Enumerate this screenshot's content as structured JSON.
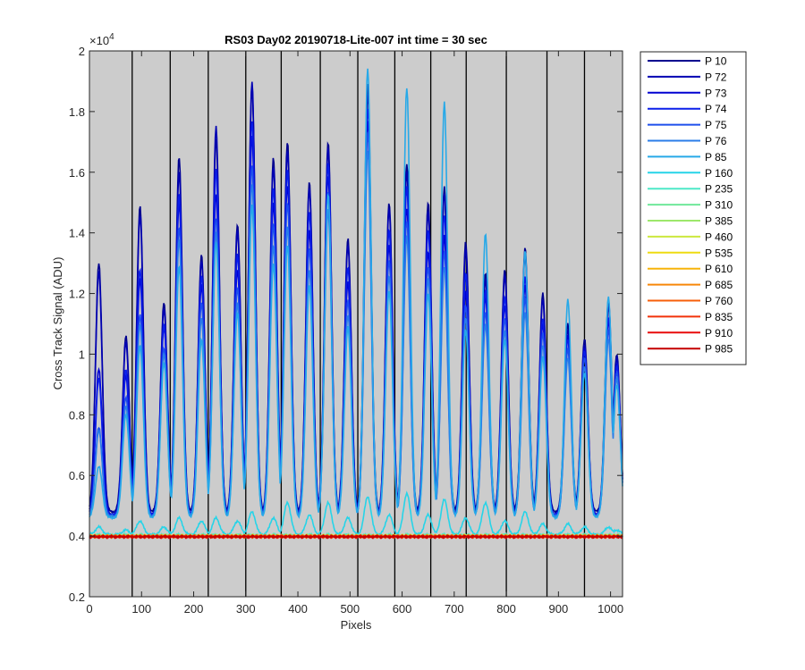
{
  "chart_data": {
    "type": "line",
    "title": "RS03 Day02 20190718-Lite-007 int time = 30 sec",
    "xlabel": "Pixels",
    "ylabel": "Cross Track Signal (ADU)",
    "xlim": [
      0,
      1023
    ],
    "ylim": [
      2000,
      20000
    ],
    "y_exponent_label": "×10",
    "y_exponent_power": "4",
    "xticks": [
      0,
      100,
      200,
      300,
      400,
      500,
      600,
      700,
      800,
      900,
      1000
    ],
    "xtick_labels": [
      "0",
      "100",
      "200",
      "300",
      "400",
      "500",
      "600",
      "700",
      "800",
      "900",
      "1000"
    ],
    "yticks": [
      2000,
      4000,
      6000,
      8000,
      10000,
      12000,
      14000,
      16000,
      18000,
      20000
    ],
    "ytick_labels": [
      "0.2",
      "0.4",
      "0.6",
      "0.8",
      "1",
      "1.2",
      "1.4",
      "1.6",
      "1.8",
      "2"
    ],
    "vertical_separators": [
      82,
      155,
      228,
      300,
      368,
      443,
      515,
      586,
      655,
      723,
      800,
      878,
      950
    ],
    "background_color": "#cccccc",
    "grid": false,
    "legend_position": "outside-right",
    "peak_centers": [
      18,
      70,
      97,
      143,
      172,
      215,
      243,
      284,
      312,
      353,
      380,
      422,
      458,
      496,
      534,
      575,
      609,
      650,
      681,
      722,
      760,
      797,
      836,
      870,
      918,
      950,
      996,
      1012
    ],
    "series": [
      {
        "name": "P 10",
        "color": "#00008f",
        "baseline": 4800,
        "peaks": [
          13000,
          10600,
          14900,
          11700,
          16500,
          13300,
          17100,
          14300,
          18800,
          16500,
          17000,
          15700,
          17000,
          13800,
          18900,
          15000,
          16300,
          15000,
          15500,
          13700,
          12700,
          12800,
          13500,
          12000,
          11000,
          10500,
          11800,
          10000
        ]
      },
      {
        "name": "P 72",
        "color": "#0000b3",
        "baseline": 4700,
        "peaks": [
          12700,
          10400,
          14600,
          11500,
          16000,
          13100,
          17500,
          14100,
          19000,
          16200,
          16700,
          15500,
          16800,
          13600,
          18600,
          14800,
          16000,
          14700,
          15300,
          13500,
          12500,
          12600,
          13300,
          11800,
          10800,
          10300,
          11600,
          9900
        ]
      },
      {
        "name": "P 73",
        "color": "#0000d1",
        "baseline": 4700,
        "peaks": [
          9500,
          9300,
          12500,
          10900,
          15000,
          12300,
          15300,
          12800,
          17200,
          15000,
          15600,
          14100,
          15900,
          12400,
          17700,
          13600,
          14800,
          13400,
          13900,
          12100,
          11900,
          11600,
          12300,
          11000,
          10600,
          10200,
          11100,
          9700
        ]
      },
      {
        "name": "P 74",
        "color": "#0a1eea",
        "baseline": 4700,
        "peaks": [
          9200,
          9500,
          12800,
          11000,
          15300,
          12600,
          16100,
          13300,
          17700,
          15500,
          16100,
          14700,
          16300,
          12900,
          18100,
          14100,
          15500,
          14100,
          14600,
          12700,
          12100,
          11900,
          12600,
          11200,
          10500,
          10100,
          11200,
          9600
        ]
      },
      {
        "name": "P 75",
        "color": "#1f4fec",
        "baseline": 4650,
        "peaks": [
          7600,
          8600,
          11300,
          10200,
          14200,
          11700,
          14500,
          12200,
          16200,
          14300,
          15000,
          13500,
          15400,
          11800,
          17300,
          13100,
          14400,
          12900,
          13400,
          11600,
          11400,
          11200,
          11900,
          10700,
          10200,
          9900,
          10800,
          9400
        ]
      },
      {
        "name": "P 76",
        "color": "#2a7de8",
        "baseline": 4650,
        "peaks": [
          7500,
          8300,
          11000,
          10000,
          13800,
          11200,
          14000,
          11700,
          15600,
          13600,
          14200,
          12800,
          14800,
          11300,
          16700,
          12600,
          13900,
          12500,
          12900,
          11200,
          11000,
          10800,
          11400,
          10300,
          9900,
          9600,
          10500,
          9200
        ]
      },
      {
        "name": "P 85",
        "color": "#27a9e8",
        "baseline": 4600,
        "peaks": [
          6300,
          8000,
          10300,
          9700,
          12900,
          10500,
          13700,
          11400,
          14900,
          13000,
          13600,
          12300,
          15300,
          10900,
          19400,
          12100,
          18800,
          12000,
          18300,
          10800,
          14000,
          10500,
          13400,
          9900,
          11800,
          9400,
          11900,
          9000
        ]
      },
      {
        "name": "P 160",
        "color": "#26d4e8",
        "baseline": 4050,
        "peaks": [
          4300,
          4200,
          4500,
          4300,
          4600,
          4500,
          4600,
          4500,
          4800,
          4600,
          5100,
          4700,
          5100,
          4600,
          5300,
          4700,
          5400,
          4700,
          5200,
          4600,
          5100,
          4500,
          4800,
          4400,
          4400,
          4300,
          4300,
          4200
        ]
      },
      {
        "name": "P 235",
        "color": "#4ee8c8",
        "baseline": 4000,
        "peaks": [
          4050,
          4050,
          4050,
          4050,
          4050,
          4050,
          4050,
          4050,
          4050,
          4050,
          4050,
          4050,
          4050,
          4050,
          4050,
          4050,
          4050,
          4050,
          4050,
          4050,
          4050,
          4050,
          4050,
          4050,
          4050,
          4050,
          4050,
          4050
        ]
      },
      {
        "name": "P 310",
        "color": "#6fe89a",
        "baseline": 4000,
        "peaks": [
          4020,
          4020,
          4020,
          4020,
          4020,
          4020,
          4020,
          4020,
          4020,
          4020,
          4020,
          4020,
          4020,
          4020,
          4020,
          4020,
          4020,
          4020,
          4020,
          4020,
          4020,
          4020,
          4020,
          4020,
          4020,
          4020,
          4020,
          4020
        ]
      },
      {
        "name": "P 385",
        "color": "#9de86b",
        "baseline": 4000,
        "peaks": [
          4010,
          4010,
          4010,
          4010,
          4010,
          4010,
          4010,
          4010,
          4010,
          4010,
          4010,
          4010,
          4010,
          4010,
          4010,
          4010,
          4010,
          4010,
          4010,
          4010,
          4010,
          4010,
          4010,
          4010,
          4010,
          4010,
          4010,
          4010
        ]
      },
      {
        "name": "P 460",
        "color": "#cce83e",
        "baseline": 4000,
        "peaks": [
          4010,
          4010,
          4010,
          4010,
          4010,
          4010,
          4010,
          4010,
          4010,
          4010,
          4010,
          4010,
          4010,
          4010,
          4010,
          4010,
          4010,
          4010,
          4010,
          4010,
          4010,
          4010,
          4010,
          4010,
          4010,
          4010,
          4010,
          4010
        ]
      },
      {
        "name": "P 535",
        "color": "#eedb12",
        "baseline": 4000,
        "peaks": [
          4000,
          4000,
          4000,
          4000,
          4000,
          4000,
          4000,
          4000,
          4000,
          4000,
          4000,
          4000,
          4000,
          4000,
          4000,
          4000,
          4000,
          4000,
          4000,
          4000,
          4000,
          4000,
          4000,
          4000,
          4000,
          4000,
          4000,
          4000
        ]
      },
      {
        "name": "P 610",
        "color": "#f7b40a",
        "baseline": 3990,
        "peaks": [
          3990,
          3990,
          3990,
          3990,
          3990,
          3990,
          3990,
          3990,
          3990,
          3990,
          3990,
          3990,
          3990,
          3990,
          3990,
          3990,
          3990,
          3990,
          3990,
          3990,
          3990,
          3990,
          3990,
          3990,
          3990,
          3990,
          3990,
          3990
        ]
      },
      {
        "name": "P 685",
        "color": "#f7880a",
        "baseline": 3990,
        "peaks": [
          3990,
          3990,
          3990,
          3990,
          3990,
          3990,
          3990,
          3990,
          3990,
          3990,
          3990,
          3990,
          3990,
          3990,
          3990,
          3990,
          3990,
          3990,
          3990,
          3990,
          3990,
          3990,
          3990,
          3990,
          3990,
          3990,
          3990,
          3990
        ]
      },
      {
        "name": "P 760",
        "color": "#f75f0a",
        "baseline": 3985,
        "peaks": [
          3985,
          3985,
          3985,
          3985,
          3985,
          3985,
          3985,
          3985,
          3985,
          3985,
          3985,
          3985,
          3985,
          3985,
          3985,
          3985,
          3985,
          3985,
          3985,
          3985,
          3985,
          3985,
          3985,
          3985,
          3985,
          3985,
          3985,
          3985
        ]
      },
      {
        "name": "P 835",
        "color": "#f2330a",
        "baseline": 3985,
        "peaks": [
          3985,
          3985,
          3985,
          3985,
          3985,
          3985,
          3985,
          3985,
          3985,
          3985,
          3985,
          3985,
          3985,
          3985,
          3985,
          3985,
          3985,
          3985,
          3985,
          3985,
          3985,
          3985,
          3985,
          3985,
          3985,
          3985,
          3985,
          3985
        ]
      },
      {
        "name": "P 910",
        "color": "#e80a0a",
        "baseline": 3980,
        "peaks": [
          3980,
          3980,
          3980,
          3980,
          3980,
          3980,
          3980,
          3980,
          3980,
          3980,
          3980,
          3980,
          3980,
          3980,
          3980,
          3980,
          3980,
          3980,
          3980,
          3980,
          3980,
          3980,
          3980,
          3980,
          3980,
          3980,
          3980,
          3980
        ]
      },
      {
        "name": "P 985",
        "color": "#c40000",
        "baseline": 3980,
        "peaks": [
          3980,
          3980,
          3980,
          3980,
          3980,
          3980,
          3980,
          3980,
          3980,
          3980,
          3980,
          3980,
          3980,
          3980,
          3980,
          3980,
          3980,
          3980,
          3980,
          3980,
          3980,
          3980,
          3980,
          3980,
          3980,
          3980,
          3980,
          3980
        ]
      }
    ]
  }
}
